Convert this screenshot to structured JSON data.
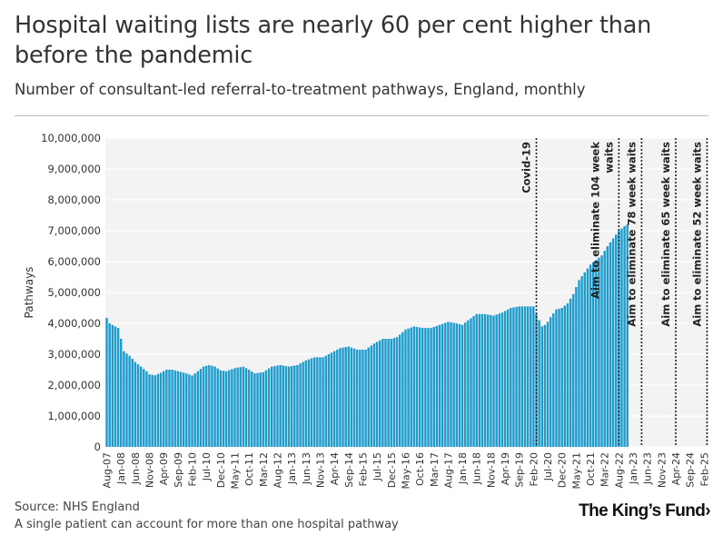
{
  "header": {
    "title": "Hospital waiting lists are nearly 60 per cent higher than before the pandemic",
    "subtitle": "Number of consultant-led referral-to-treatment pathways, England, monthly"
  },
  "footer": {
    "source": "Source: NHS England",
    "note": "A single patient can account for more than one hospital pathway",
    "logo_text": "The King’s Fund",
    "logo_mark": "›"
  },
  "colors": {
    "bar": "#1e9ccf",
    "plot_bg": "#f3f3f3",
    "grid": "#ffffff",
    "text": "#333333"
  },
  "chart_data": {
    "type": "bar",
    "ylabel": "Pathways",
    "xlabel": "",
    "ylim": [
      0,
      10000000
    ],
    "yticks": [
      0,
      1000000,
      2000000,
      3000000,
      4000000,
      5000000,
      6000000,
      7000000,
      8000000,
      9000000,
      10000000
    ],
    "ytick_labels": [
      "0",
      "1,000,000",
      "2,000,000",
      "3,000,000",
      "4,000,000",
      "5,000,000",
      "6,000,000",
      "7,000,000",
      "8,000,000",
      "9,000,000",
      "10,000,000"
    ],
    "x_start": "2007-08",
    "x_end": "2025-03",
    "xtick_labels": [
      "Aug-07",
      "Jan-08",
      "Jun-08",
      "Nov-08",
      "Apr-09",
      "Sep-09",
      "Feb-10",
      "Jul-10",
      "Dec-10",
      "May-11",
      "Oct-11",
      "Mar-12",
      "Aug-12",
      "Jan-13",
      "Jun-13",
      "Nov-13",
      "Apr-14",
      "Sep-14",
      "Feb-15",
      "Jul-15",
      "Dec-15",
      "May-16",
      "Oct-16",
      "Mar-17",
      "Aug-17",
      "Jan-18",
      "Jun-18",
      "Nov-18",
      "Apr-19",
      "Sep-19",
      "Feb-20",
      "Jul-20",
      "Dec-20",
      "May-21",
      "Oct-21",
      "Mar-22",
      "Aug-22",
      "Jan-23",
      "Jun-23",
      "Nov-23",
      "Apr-24",
      "Sep-24",
      "Feb-25"
    ],
    "anchor_points": [
      [
        "2007-08",
        4180000
      ],
      [
        "2007-09",
        4000000
      ],
      [
        "2007-11",
        3900000
      ],
      [
        "2007-12",
        3850000
      ],
      [
        "2008-01",
        3500000
      ],
      [
        "2008-02",
        3100000
      ],
      [
        "2008-04",
        2950000
      ],
      [
        "2008-06",
        2750000
      ],
      [
        "2008-08",
        2600000
      ],
      [
        "2008-09",
        2520000
      ],
      [
        "2008-10",
        2450000
      ],
      [
        "2008-11",
        2350000
      ],
      [
        "2009-01",
        2320000
      ],
      [
        "2009-03",
        2400000
      ],
      [
        "2009-05",
        2500000
      ],
      [
        "2009-07",
        2500000
      ],
      [
        "2009-10",
        2430000
      ],
      [
        "2009-12",
        2380000
      ],
      [
        "2010-02",
        2310000
      ],
      [
        "2010-04",
        2450000
      ],
      [
        "2010-06",
        2600000
      ],
      [
        "2010-08",
        2650000
      ],
      [
        "2010-10",
        2600000
      ],
      [
        "2010-12",
        2480000
      ],
      [
        "2011-02",
        2450000
      ],
      [
        "2011-05",
        2550000
      ],
      [
        "2011-08",
        2600000
      ],
      [
        "2011-10",
        2500000
      ],
      [
        "2011-12",
        2380000
      ],
      [
        "2012-03",
        2420000
      ],
      [
        "2012-06",
        2600000
      ],
      [
        "2012-09",
        2650000
      ],
      [
        "2012-12",
        2600000
      ],
      [
        "2013-03",
        2650000
      ],
      [
        "2013-06",
        2800000
      ],
      [
        "2013-09",
        2900000
      ],
      [
        "2013-12",
        2900000
      ],
      [
        "2014-03",
        3050000
      ],
      [
        "2014-06",
        3200000
      ],
      [
        "2014-09",
        3250000
      ],
      [
        "2014-12",
        3150000
      ],
      [
        "2015-03",
        3150000
      ],
      [
        "2015-06",
        3350000
      ],
      [
        "2015-09",
        3500000
      ],
      [
        "2015-12",
        3500000
      ],
      [
        "2016-02",
        3550000
      ],
      [
        "2016-05",
        3800000
      ],
      [
        "2016-08",
        3900000
      ],
      [
        "2016-11",
        3850000
      ],
      [
        "2017-02",
        3850000
      ],
      [
        "2017-05",
        3950000
      ],
      [
        "2017-08",
        4050000
      ],
      [
        "2017-11",
        4000000
      ],
      [
        "2018-01",
        3950000
      ],
      [
        "2018-03",
        4100000
      ],
      [
        "2018-06",
        4300000
      ],
      [
        "2018-09",
        4300000
      ],
      [
        "2018-12",
        4250000
      ],
      [
        "2019-03",
        4350000
      ],
      [
        "2019-06",
        4500000
      ],
      [
        "2019-09",
        4550000
      ],
      [
        "2019-12",
        4550000
      ],
      [
        "2020-02",
        4550000
      ],
      [
        "2020-03",
        4300000
      ],
      [
        "2020-04",
        4100000
      ],
      [
        "2020-05",
        3900000
      ],
      [
        "2020-06",
        3950000
      ],
      [
        "2020-07",
        4050000
      ],
      [
        "2020-08",
        4200000
      ],
      [
        "2020-10",
        4450000
      ],
      [
        "2020-12",
        4500000
      ],
      [
        "2021-02",
        4650000
      ],
      [
        "2021-04",
        4950000
      ],
      [
        "2021-06",
        5400000
      ],
      [
        "2021-08",
        5650000
      ],
      [
        "2021-10",
        5900000
      ],
      [
        "2021-12",
        6050000
      ],
      [
        "2022-02",
        6200000
      ],
      [
        "2022-04",
        6500000
      ],
      [
        "2022-06",
        6750000
      ],
      [
        "2022-08",
        7000000
      ],
      [
        "2022-10",
        7150000
      ],
      [
        "2022-11",
        7200000
      ]
    ],
    "annotations": [
      {
        "date": "2020-03",
        "label": "Covid-19"
      },
      {
        "date": "2022-08",
        "label_line1": "Aim to eliminate 104 week",
        "label_line2": "waits"
      },
      {
        "date": "2023-04",
        "label": "Aim to eliminate 78 week waits"
      },
      {
        "date": "2024-04",
        "label": "Aim to eliminate 65 week waits"
      },
      {
        "date": "2025-03",
        "label": "Aim to eliminate 52 week waits"
      }
    ]
  }
}
